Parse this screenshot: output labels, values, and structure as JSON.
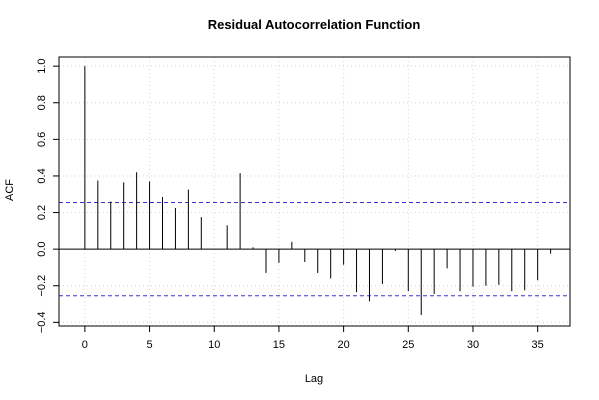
{
  "chart_data": {
    "type": "bar",
    "title": "Residual Autocorrelation Function",
    "xlabel": "Lag",
    "ylabel": "ACF",
    "xlim": [
      -2,
      37.5
    ],
    "ylim": [
      -0.42,
      1.05
    ],
    "x_ticks": [
      0,
      5,
      10,
      15,
      20,
      25,
      30,
      35
    ],
    "y_ticks": [
      -0.4,
      -0.2,
      0.0,
      0.2,
      0.4,
      0.6,
      0.8,
      1.0
    ],
    "y_tick_labels": [
      "−0.4",
      "−0.2",
      "0.0",
      "0.2",
      "0.4",
      "0.6",
      "0.8",
      "1.0"
    ],
    "grid": true,
    "confidence_bound": 0.255,
    "bound_color": "#3333cc",
    "lags": [
      0,
      1,
      2,
      3,
      4,
      5,
      6,
      7,
      8,
      9,
      10,
      11,
      12,
      13,
      14,
      15,
      16,
      17,
      18,
      19,
      20,
      21,
      22,
      23,
      24,
      25,
      26,
      27,
      28,
      29,
      30,
      31,
      32,
      33,
      34,
      35,
      36
    ],
    "values": [
      1.0,
      0.375,
      0.26,
      0.365,
      0.42,
      0.37,
      0.285,
      0.225,
      0.325,
      0.175,
      0.0,
      0.13,
      0.415,
      0.01,
      -0.13,
      -0.075,
      0.04,
      -0.07,
      -0.13,
      -0.16,
      -0.085,
      -0.235,
      -0.285,
      -0.19,
      -0.01,
      -0.23,
      -0.36,
      -0.245,
      -0.105,
      -0.23,
      -0.205,
      -0.2,
      -0.195,
      -0.23,
      -0.225,
      -0.17,
      -0.025
    ]
  }
}
